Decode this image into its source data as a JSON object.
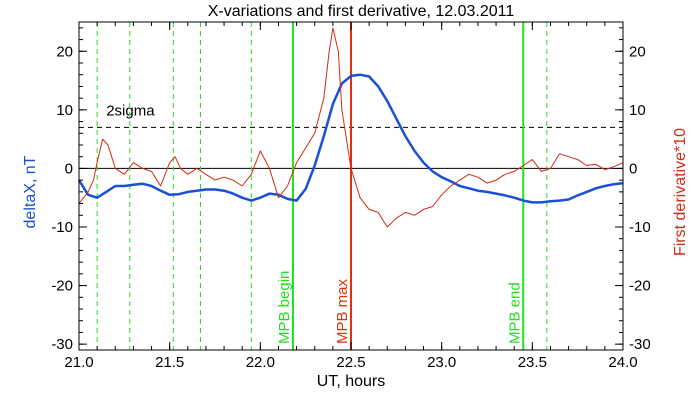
{
  "chart_data": {
    "type": "line",
    "title": "X-variations and first derivative, 12.03.2011",
    "xlabel": "UT, hours",
    "ylabel": "deltaX, nT",
    "y2label": "First derivative*10",
    "xlim": [
      21.0,
      24.0
    ],
    "ylim": [
      -31,
      25
    ],
    "xticks": [
      21.0,
      21.5,
      22.0,
      22.5,
      23.0,
      23.5,
      24.0
    ],
    "xtick_labels": [
      "21.0",
      "21.5",
      "22.0",
      "22.5",
      "23.0",
      "23.5",
      "24.0"
    ],
    "yticks": [
      -30,
      -20,
      -10,
      0,
      10,
      20
    ],
    "ytick_labels": [
      "-30",
      "-20",
      "-10",
      "0",
      "10",
      "20"
    ],
    "grid": false,
    "colors": {
      "deltaX": "#1a4fd6",
      "derivative": "#d22b10",
      "mpb_begin_end": "#22e022",
      "mpb_max": "#e03010",
      "dashed_green": "#22e022",
      "left_axis_title": "#1a4fd6",
      "right_axis_title": "#d22b10"
    },
    "series": [
      {
        "key": "deltaX",
        "x": [
          21.0,
          21.05,
          21.1,
          21.15,
          21.2,
          21.25,
          21.3,
          21.35,
          21.4,
          21.45,
          21.5,
          21.55,
          21.6,
          21.65,
          21.7,
          21.75,
          21.8,
          21.85,
          21.9,
          21.95,
          22.0,
          22.05,
          22.1,
          22.15,
          22.2,
          22.25,
          22.3,
          22.35,
          22.4,
          22.45,
          22.5,
          22.55,
          22.6,
          22.65,
          22.7,
          22.75,
          22.8,
          22.85,
          22.9,
          22.95,
          23.0,
          23.05,
          23.1,
          23.15,
          23.2,
          23.25,
          23.3,
          23.35,
          23.4,
          23.45,
          23.5,
          23.55,
          23.6,
          23.65,
          23.7,
          23.75,
          23.8,
          23.85,
          23.9,
          23.95,
          24.0
        ],
        "y": [
          -2,
          -4.5,
          -5,
          -4,
          -3,
          -3,
          -2.8,
          -2.6,
          -3,
          -3.8,
          -4.5,
          -4.4,
          -4,
          -3.8,
          -3.6,
          -3.6,
          -3.8,
          -4.3,
          -5,
          -5.5,
          -5,
          -4.3,
          -4.5,
          -5.2,
          -5.5,
          -3.5,
          0.5,
          5.5,
          11,
          14.5,
          15.8,
          16,
          15.7,
          14,
          11.5,
          8.5,
          5.5,
          3,
          1,
          -0.5,
          -1.5,
          -2.2,
          -3,
          -3.4,
          -3.8,
          -4,
          -4.3,
          -4.6,
          -5,
          -5.5,
          -5.8,
          -5.8,
          -5.6,
          -5.5,
          -5.3,
          -4.6,
          -4,
          -3.4,
          -3,
          -2.7,
          -2.5
        ]
      },
      {
        "key": "derivative",
        "x": [
          21.0,
          21.05,
          21.08,
          21.1,
          21.13,
          21.16,
          21.2,
          21.25,
          21.3,
          21.35,
          21.4,
          21.45,
          21.5,
          21.53,
          21.56,
          21.6,
          21.65,
          21.7,
          21.75,
          21.8,
          21.85,
          21.9,
          21.95,
          22.0,
          22.05,
          22.1,
          22.15,
          22.2,
          22.25,
          22.3,
          22.35,
          22.38,
          22.4,
          22.43,
          22.45,
          22.5,
          22.55,
          22.6,
          22.65,
          22.7,
          22.75,
          22.8,
          22.85,
          22.9,
          22.95,
          23.0,
          23.05,
          23.1,
          23.15,
          23.2,
          23.25,
          23.3,
          23.35,
          23.4,
          23.45,
          23.5,
          23.55,
          23.6,
          23.65,
          23.7,
          23.75,
          23.8,
          23.85,
          23.9,
          23.95,
          24.0
        ],
        "y": [
          -6,
          -4,
          -2,
          1,
          5,
          4,
          0,
          -1,
          1,
          0,
          -0.5,
          -3,
          1,
          2,
          0,
          -1,
          0,
          -1,
          -2,
          -1.5,
          -2,
          -3,
          -1,
          3,
          0,
          -5,
          -3,
          1,
          3.5,
          6,
          12,
          20,
          24,
          20,
          10,
          0,
          -5,
          -7,
          -7.5,
          -10,
          -8.5,
          -7.5,
          -8,
          -7,
          -6.5,
          -4.5,
          -3,
          -2,
          -1,
          -1.5,
          -2.5,
          -2,
          -1,
          -0.5,
          0.5,
          1.5,
          -0.5,
          0,
          2.5,
          2,
          1.5,
          0.5,
          0.7,
          -0.2,
          0.3,
          1
        ]
      }
    ],
    "vertical_lines": [
      {
        "x": 21.1,
        "style": "dashed"
      },
      {
        "x": 21.28,
        "style": "dashed"
      },
      {
        "x": 21.52,
        "style": "dashed"
      },
      {
        "x": 21.67,
        "style": "dashed"
      },
      {
        "x": 21.95,
        "style": "dashed"
      },
      {
        "x": 22.18,
        "style": "solid",
        "label": "MPB begin"
      },
      {
        "x": 22.5,
        "style": "solid-red",
        "label": "MPB max"
      },
      {
        "x": 23.45,
        "style": "solid",
        "label": "MPB end"
      },
      {
        "x": 23.58,
        "style": "dashed"
      }
    ],
    "horizontal_lines": [
      {
        "y": 7,
        "style": "dashed",
        "label": "2sigma"
      },
      {
        "y": 0,
        "style": "solid"
      }
    ]
  }
}
